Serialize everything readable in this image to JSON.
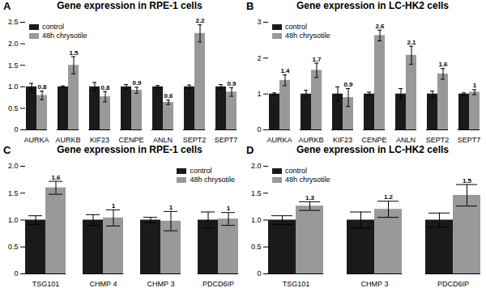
{
  "chart_data": [
    {
      "type": "bar",
      "title": "Gene expression in RPE-1 cells",
      "annotations": [
        "A"
      ],
      "categories": [
        "AURKA",
        "AURKB",
        "KIF23",
        "CENPE",
        "ANLN",
        "SEPT2",
        "SEPT7"
      ],
      "series": [
        {
          "name": "control",
          "color": "#1a1a1a",
          "values": [
            1.0,
            1.0,
            1.0,
            1.0,
            1.0,
            1.0,
            1.0
          ],
          "errors": [
            0.08,
            0.02,
            0.1,
            0.05,
            0.03,
            0.04,
            0.05
          ]
        },
        {
          "name": "48h chrysotile",
          "color": "#999999",
          "values": [
            0.8,
            1.5,
            0.77,
            0.92,
            0.64,
            2.24,
            0.88
          ],
          "errors": [
            0.1,
            0.2,
            0.12,
            0.07,
            0.05,
            0.2,
            0.1
          ],
          "data_labels": true,
          "value_labels": [
            "0.8",
            "1.5",
            "0.8",
            "0.9",
            "0.6",
            "2.2",
            "0.9"
          ]
        }
      ],
      "ylim": [
        0,
        2.5
      ],
      "yticks": [
        0,
        0.5,
        {
          "value": 1,
          "label": "1.0"
        },
        1.5,
        {
          "value": 2,
          "label": "2.0"
        },
        2.5
      ],
      "legend": "upper left"
    },
    {
      "type": "bar",
      "title": "Gene expression in LC-HK2 cells",
      "annotations": [
        "B"
      ],
      "categories": [
        "AURKA",
        "AURKB",
        "KIF23",
        "CENPE",
        "ANLN",
        "SEPT2",
        "SEPT7"
      ],
      "series": [
        {
          "name": "control",
          "color": "#1a1a1a",
          "values": [
            1.0,
            1.0,
            1.0,
            1.0,
            1.0,
            1.0,
            1.0
          ],
          "errors": [
            0.03,
            0.1,
            0.2,
            0.05,
            0.15,
            0.08,
            0.03
          ]
        },
        {
          "name": "48h chrysotile",
          "color": "#999999",
          "values": [
            1.38,
            1.66,
            0.9,
            2.63,
            2.08,
            1.56,
            1.05
          ],
          "errors": [
            0.15,
            0.2,
            0.25,
            0.15,
            0.25,
            0.15,
            0.07
          ],
          "data_labels": true,
          "value_labels": [
            "1.4",
            "1.7",
            "0.9",
            "2.6",
            "2.1",
            "1.6",
            "1"
          ]
        }
      ],
      "ylim": [
        0,
        3
      ],
      "yticks": [
        0,
        1,
        2,
        3
      ],
      "legend": "upper left"
    },
    {
      "type": "bar",
      "title": "Gene expression in RPE-1 cells",
      "annotations": [
        "C"
      ],
      "categories": [
        "TSG101",
        "CHMP 4",
        "CHMP 3",
        "PDCD6IP"
      ],
      "series": [
        {
          "name": "control",
          "color": "#1a1a1a",
          "values": [
            1.0,
            1.0,
            1.0,
            1.0
          ],
          "errors": [
            0.08,
            0.1,
            0.05,
            0.15
          ]
        },
        {
          "name": "48h chrysotile",
          "color": "#999999",
          "values": [
            1.6,
            1.04,
            0.98,
            1.02
          ],
          "errors": [
            0.12,
            0.15,
            0.18,
            0.12
          ],
          "data_labels": true,
          "value_labels": [
            "1.6",
            "1",
            "1",
            "1"
          ]
        }
      ],
      "ylim": [
        0,
        2
      ],
      "yticks": [
        0,
        0.5,
        {
          "value": 1,
          "label": "1.0"
        },
        1.5,
        {
          "value": 2,
          "label": "2.0"
        }
      ],
      "legend": "upper right"
    },
    {
      "type": "bar",
      "title": "Gene expression in LC-HK2 cells",
      "annotations": [
        "D"
      ],
      "categories": [
        "TSG101",
        "CHMP 3",
        "PDCD6IP"
      ],
      "series": [
        {
          "name": "control",
          "color": "#1a1a1a",
          "values": [
            1.0,
            1.0,
            1.0
          ],
          "errors": [
            0.08,
            0.15,
            0.13
          ]
        },
        {
          "name": "48h chrysotile",
          "color": "#999999",
          "values": [
            1.26,
            1.2,
            1.46
          ],
          "errors": [
            0.08,
            0.15,
            0.2
          ],
          "data_labels": true,
          "value_labels": [
            "1.3",
            "1.2",
            "1.5"
          ]
        }
      ],
      "ylim": [
        0,
        2
      ],
      "yticks": [
        0,
        0.5,
        {
          "value": 1,
          "label": "1.0"
        },
        1.5,
        {
          "value": 2,
          "label": "2.0"
        }
      ],
      "legend": "upper left"
    }
  ]
}
